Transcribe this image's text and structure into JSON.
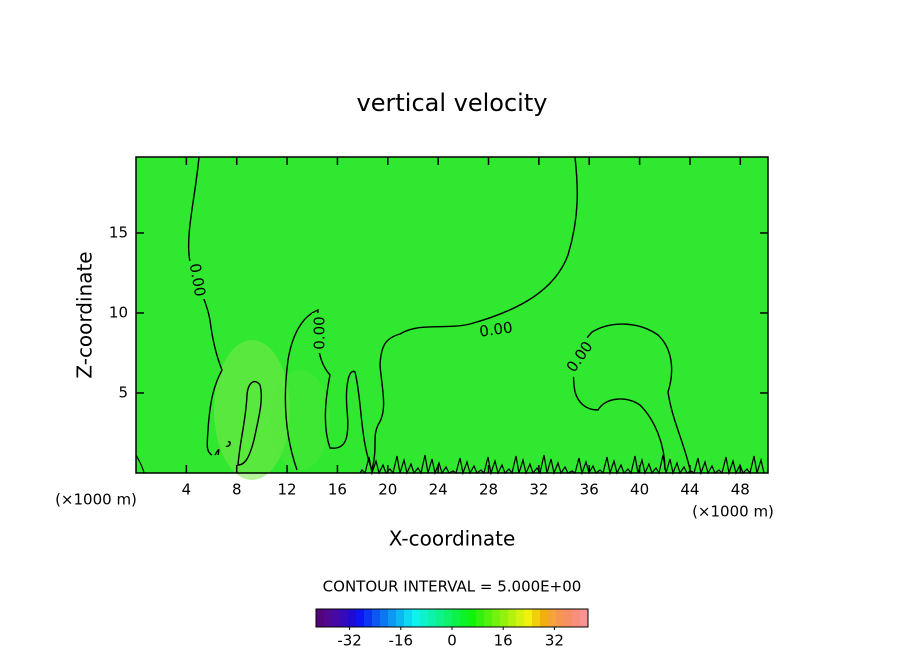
{
  "chart_data": {
    "type": "contour",
    "title": "vertical velocity",
    "x_label": "X-coordinate",
    "y_label": "Z-coordinate",
    "x_unit_label": "(×1000 m)",
    "y_unit_label": "(×1000 m)",
    "xlim": [
      0,
      50.2
    ],
    "xticks": [
      4,
      8,
      12,
      16,
      20,
      24,
      28,
      32,
      36,
      40,
      44,
      48
    ],
    "ylim": [
      0,
      19.75
    ],
    "yticks": [
      5,
      10,
      15
    ],
    "contour_level": 0,
    "contour_label": "0.00",
    "field_color": "#2fe82f",
    "line_color": "#000000",
    "contour_interval_text": "CONTOUR INTERVAL = 5.000E+00",
    "colorbar": {
      "lim": [
        -42.5,
        42.5
      ],
      "ticks": [
        -32,
        -16,
        0,
        16,
        32
      ]
    }
  }
}
